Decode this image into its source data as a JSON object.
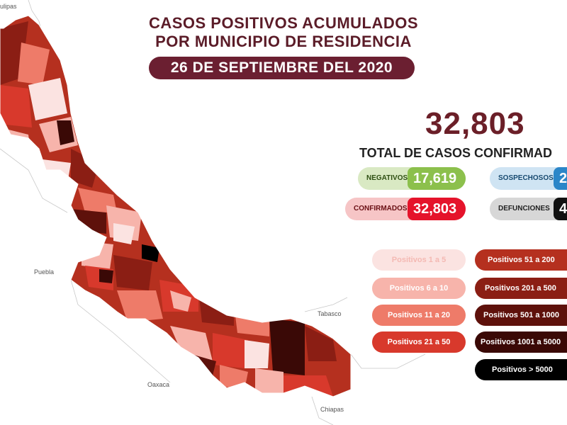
{
  "title_line1": "CASOS POSITIVOS ACUMULADOS",
  "title_line2": "POR MUNICIPIO DE RESIDENCIA",
  "date": "26 DE SEPTIEMBRE DEL 2020",
  "total": {
    "number": "32,803",
    "label": "TOTAL DE CASOS CONFIRMAD"
  },
  "stats": {
    "negativos": {
      "label": "NEGATIVOS",
      "value": "17,619",
      "color": "#8cc04c"
    },
    "sospechosos": {
      "label": "SOSPECHOSOS",
      "value": "2",
      "color": "#2b86c8"
    },
    "confirmados": {
      "label": "CONFIRMADOS",
      "value": "32,803",
      "color": "#e5132b"
    },
    "defunciones": {
      "label": "DEFUNCIONES",
      "value": "4",
      "color": "#111111"
    }
  },
  "legend": [
    {
      "label": "Positivos 1 a 5",
      "color": "#fbe3e1"
    },
    {
      "label": "Positivos 6 a 10",
      "color": "#f7b4ab"
    },
    {
      "label": "Positivos 11 a 20",
      "color": "#ee7b69"
    },
    {
      "label": "Positivos 21 a 50",
      "color": "#d8392c"
    },
    {
      "label": "Positivos 51 a 200",
      "color": "#b5301f"
    },
    {
      "label": "Positivos 201 a 500",
      "color": "#8b1e14"
    },
    {
      "label": "Positivos 501 a 1000",
      "color": "#5e110b"
    },
    {
      "label": "Positivos 1001 a 5000",
      "color": "#3a0906"
    },
    {
      "label": "Positivos > 5000",
      "color": "#000000"
    }
  ],
  "state_labels": {
    "tamaulipas": "ulipas",
    "puebla": "Puebla",
    "oaxaca": "Oaxaca",
    "tabasco": "Tabasco",
    "chiapas": "Chiapas"
  }
}
